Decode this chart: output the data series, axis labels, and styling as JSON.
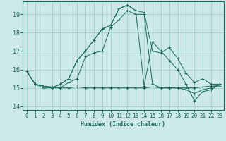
{
  "title": "",
  "xlabel": "Humidex (Indice chaleur)",
  "bg_color": "#cce8e8",
  "line_color": "#1a6b5a",
  "grid_color": "#99cccc",
  "xlim": [
    -0.5,
    23.5
  ],
  "ylim": [
    13.8,
    19.7
  ],
  "yticks": [
    14,
    15,
    16,
    17,
    18,
    19
  ],
  "xticks": [
    0,
    1,
    2,
    3,
    4,
    5,
    6,
    7,
    8,
    9,
    10,
    11,
    12,
    13,
    14,
    15,
    16,
    17,
    18,
    19,
    20,
    21,
    22,
    23
  ],
  "series": [
    [
      15.9,
      15.2,
      15.1,
      15.05,
      15.0,
      15.0,
      15.05,
      15.0,
      15.0,
      15.0,
      15.0,
      15.0,
      15.0,
      15.0,
      15.0,
      15.05,
      15.0,
      15.0,
      15.0,
      15.0,
      15.0,
      15.05,
      15.1,
      15.1
    ],
    [
      15.9,
      15.2,
      15.0,
      15.0,
      15.0,
      15.3,
      15.5,
      16.7,
      16.9,
      17.0,
      18.3,
      18.7,
      19.2,
      19.0,
      19.0,
      15.2,
      15.0,
      15.0,
      15.0,
      14.9,
      14.7,
      14.9,
      15.0,
      15.2
    ],
    [
      15.9,
      15.2,
      15.1,
      15.0,
      15.2,
      15.5,
      16.5,
      17.0,
      17.6,
      18.2,
      18.4,
      19.3,
      19.5,
      19.2,
      19.1,
      17.0,
      16.9,
      17.2,
      16.6,
      15.8,
      15.3,
      15.5,
      15.2,
      15.2
    ],
    [
      15.9,
      15.2,
      15.1,
      15.0,
      15.2,
      15.5,
      16.5,
      17.0,
      17.6,
      18.2,
      18.4,
      19.3,
      19.5,
      19.2,
      15.1,
      17.5,
      17.0,
      16.5,
      16.0,
      15.2,
      14.3,
      14.8,
      14.9,
      15.2
    ]
  ],
  "xlabel_fontsize": 6,
  "tick_fontsize": 5.5
}
